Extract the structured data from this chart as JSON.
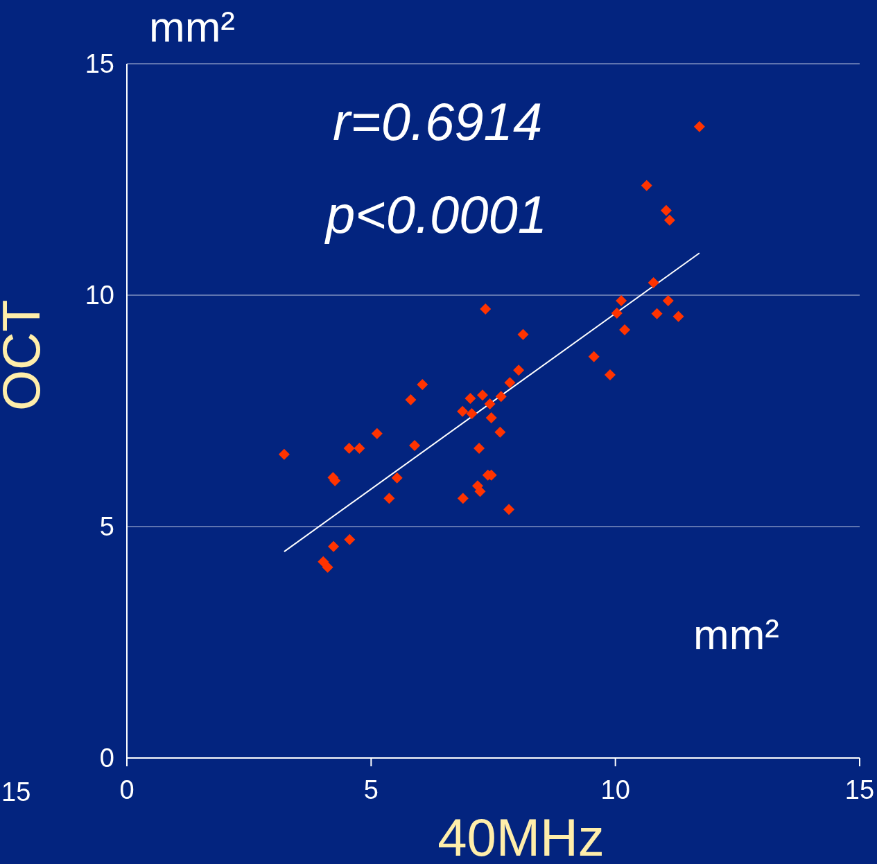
{
  "chart_data": {
    "type": "scatter",
    "xlabel": "40MHz",
    "ylabel": "OCT",
    "xlim": [
      0,
      15
    ],
    "xticks": [
      0,
      5,
      10,
      15
    ],
    "ylim": [
      0,
      15
    ],
    "yticks": [
      0,
      5,
      10,
      15
    ],
    "grid": "y",
    "annotations": [
      "mm²",
      "r=0.6914",
      "p<0.0001",
      "mm²",
      "15"
    ],
    "series": [
      {
        "color": "#ff3300",
        "marker": "diamond",
        "x": [
          3.22,
          4.02,
          4.11,
          4.22,
          4.26,
          4.23,
          4.56,
          4.55,
          4.76,
          5.12,
          5.37,
          5.53,
          5.81,
          6.05,
          5.89,
          6.88,
          6.87,
          7.03,
          7.06,
          7.21,
          7.18,
          7.23,
          7.28,
          7.34,
          7.39,
          7.46,
          7.43,
          7.46,
          7.64,
          7.66,
          7.82,
          7.84,
          8.02,
          8.11,
          9.56,
          9.89,
          10.03,
          10.12,
          10.19,
          10.64,
          10.78,
          10.85,
          11.04,
          11.11,
          11.08,
          11.29,
          11.72
        ],
        "values": [
          6.56,
          4.24,
          4.12,
          6.06,
          5.99,
          4.57,
          4.72,
          6.69,
          6.69,
          7.01,
          5.61,
          6.05,
          7.74,
          8.07,
          6.75,
          5.61,
          7.49,
          7.77,
          7.44,
          6.69,
          5.88,
          5.76,
          7.84,
          9.7,
          6.11,
          6.11,
          7.65,
          7.35,
          7.04,
          7.81,
          5.37,
          8.11,
          8.38,
          9.15,
          8.67,
          8.28,
          9.61,
          9.88,
          9.25,
          12.37,
          10.27,
          9.6,
          11.83,
          11.62,
          9.88,
          9.54,
          13.64
        ]
      },
      {
        "type": "line",
        "marker": "none",
        "color": "#ffffff",
        "x": [
          3.22,
          11.72
        ],
        "values": [
          4.46,
          10.91
        ]
      }
    ]
  }
}
